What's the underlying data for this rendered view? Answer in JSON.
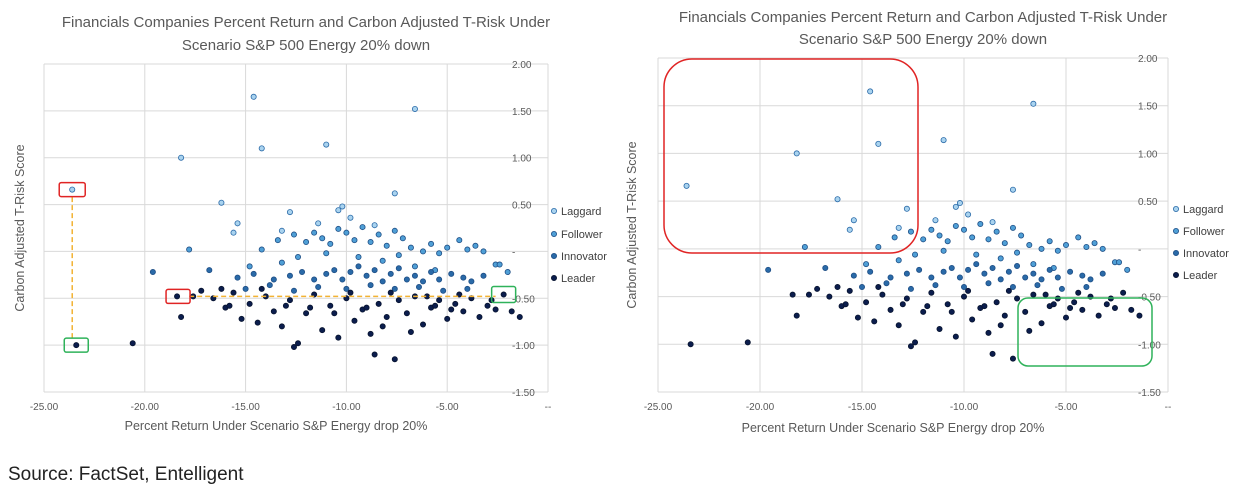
{
  "source": "Source: FactSet, Entelligent",
  "colors": {
    "laggard": "#a9d3ef",
    "follower": "#4f9fd6",
    "innovator": "#2a6aa8",
    "leader": "#0b1d4d",
    "highlight_red": "#e02424",
    "highlight_green": "#2fb25a",
    "guide_yellow": "#f2b233"
  },
  "chart_data": [
    {
      "type": "scatter",
      "title": "Financials Companies Percent Return and Carbon Adjusted T-Risk Under Scenario S&P 500 Energy 20% down",
      "title_lines": [
        "Financials Companies Percent Return and Carbon Adjusted T-Risk Under",
        "Scenario S&P 500 Energy 20% down"
      ],
      "xlabel": "Percent Return Under  Scenario S&P Energy drop 20%",
      "ylabel": "Carbon Adjusted T-Risk Score",
      "xlim": [
        -25,
        0
      ],
      "ylim": [
        -1.5,
        2.0
      ],
      "x_ticks": [
        "-25.00",
        "-20.00",
        "-15.00",
        "-10.00",
        "-5.00",
        "--"
      ],
      "y_ticks": [
        "2.00",
        "1.50",
        "1.00",
        "0.50",
        "-",
        "-0.50",
        "-1.00",
        "-1.50"
      ],
      "legend": [
        "Laggard",
        "Follower",
        "Innovator",
        "Leader"
      ],
      "legend_position": "right",
      "grid": true,
      "annotations": [
        "red box around (-23.6, 0.66)",
        "red box around (-18.4, -0.48)",
        "green box around (-23.4, -1.0)",
        "green box around (-2.2, -0.46)",
        "yellow dashed guide lines"
      ]
    },
    {
      "type": "scatter",
      "title": "Financials Companies Percent Return and Carbon Adjusted T-Risk Under Scenario S&P 500 Energy 20% down",
      "title_lines": [
        "Financials Companies Percent Return and Carbon Adjusted T-Risk Under",
        "Scenario S&P 500 Energy 20% down"
      ],
      "xlabel": "Percent Return Under  Scenario S&P Energy drop 20%",
      "ylabel": "Carbon Adjusted T-Risk Score",
      "xlim": [
        -25,
        0
      ],
      "ylim": [
        -1.5,
        2.0
      ],
      "x_ticks": [
        "-25.00",
        "-20.00",
        "-15.00",
        "-10.00",
        "-5.00",
        "--"
      ],
      "y_ticks": [
        "2.00",
        "1.50",
        "1.00",
        "0.50",
        "-",
        "-0.50",
        "-1.00",
        "-1.50"
      ],
      "legend": [
        "Laggard",
        "Follower",
        "Innovator",
        "Leader"
      ],
      "legend_position": "right",
      "grid": true,
      "annotations": [
        "red rounded box top-left region (x -25 to -12, y 0 to 2)",
        "green rounded box bottom-right region (x -7.4 to -1, y -0.5 to -1.2)"
      ]
    }
  ],
  "series": {
    "laggard": [
      [
        -23.6,
        0.66
      ],
      [
        -18.2,
        1.0
      ],
      [
        -14.6,
        1.65
      ],
      [
        -14.2,
        1.1
      ],
      [
        -11.0,
        1.14
      ],
      [
        -6.6,
        1.52
      ],
      [
        -16.2,
        0.52
      ],
      [
        -7.6,
        0.62
      ],
      [
        -15.4,
        0.3
      ],
      [
        -15.6,
        0.2
      ],
      [
        -12.8,
        0.42
      ],
      [
        -10.2,
        0.48
      ],
      [
        -11.4,
        0.3
      ],
      [
        -13.2,
        0.22
      ],
      [
        -10.4,
        0.44
      ],
      [
        -9.8,
        0.36
      ],
      [
        -8.6,
        0.28
      ]
    ],
    "follower": [
      [
        -17.8,
        0.02
      ],
      [
        -14.2,
        0.02
      ],
      [
        -13.4,
        0.12
      ],
      [
        -12.6,
        0.18
      ],
      [
        -12.0,
        0.1
      ],
      [
        -11.6,
        0.2
      ],
      [
        -11.2,
        0.14
      ],
      [
        -10.8,
        0.08
      ],
      [
        -10.4,
        0.24
      ],
      [
        -10.0,
        0.2
      ],
      [
        -9.6,
        0.12
      ],
      [
        -9.2,
        0.26
      ],
      [
        -8.8,
        0.1
      ],
      [
        -8.4,
        0.18
      ],
      [
        -8.0,
        0.06
      ],
      [
        -7.6,
        0.22
      ],
      [
        -7.2,
        0.14
      ],
      [
        -6.8,
        0.04
      ],
      [
        -6.2,
        0.0
      ],
      [
        -5.8,
        0.08
      ],
      [
        -5.4,
        -0.02
      ],
      [
        -5.0,
        0.04
      ],
      [
        -4.4,
        0.12
      ],
      [
        -4.0,
        0.02
      ],
      [
        -3.6,
        0.06
      ],
      [
        -3.2,
        0.0
      ],
      [
        -2.6,
        -0.14
      ],
      [
        -2.4,
        -0.14
      ],
      [
        -2.0,
        -0.22
      ],
      [
        -14.8,
        -0.16
      ],
      [
        -13.2,
        -0.12
      ],
      [
        -12.4,
        -0.06
      ],
      [
        -11.0,
        -0.02
      ],
      [
        -9.4,
        -0.06
      ],
      [
        -8.2,
        -0.1
      ],
      [
        -7.4,
        -0.04
      ],
      [
        -6.6,
        -0.16
      ],
      [
        -5.6,
        -0.2
      ]
    ],
    "innovator": [
      [
        -19.6,
        -0.22
      ],
      [
        -16.8,
        -0.2
      ],
      [
        -15.4,
        -0.28
      ],
      [
        -14.6,
        -0.24
      ],
      [
        -13.6,
        -0.3
      ],
      [
        -12.8,
        -0.26
      ],
      [
        -12.2,
        -0.22
      ],
      [
        -11.6,
        -0.3
      ],
      [
        -11.0,
        -0.24
      ],
      [
        -10.6,
        -0.2
      ],
      [
        -10.2,
        -0.3
      ],
      [
        -9.8,
        -0.22
      ],
      [
        -9.4,
        -0.16
      ],
      [
        -9.0,
        -0.26
      ],
      [
        -8.6,
        -0.2
      ],
      [
        -8.2,
        -0.32
      ],
      [
        -7.8,
        -0.24
      ],
      [
        -7.4,
        -0.18
      ],
      [
        -7.0,
        -0.3
      ],
      [
        -6.6,
        -0.26
      ],
      [
        -6.2,
        -0.32
      ],
      [
        -5.8,
        -0.22
      ],
      [
        -5.4,
        -0.3
      ],
      [
        -4.8,
        -0.24
      ],
      [
        -4.2,
        -0.28
      ],
      [
        -3.8,
        -0.32
      ],
      [
        -3.2,
        -0.26
      ],
      [
        -15.0,
        -0.4
      ],
      [
        -13.8,
        -0.36
      ],
      [
        -12.6,
        -0.42
      ],
      [
        -11.4,
        -0.38
      ],
      [
        -10.0,
        -0.4
      ],
      [
        -8.8,
        -0.36
      ],
      [
        -7.6,
        -0.4
      ],
      [
        -6.4,
        -0.38
      ],
      [
        -5.2,
        -0.42
      ],
      [
        -4.0,
        -0.4
      ]
    ],
    "leader": [
      [
        -23.4,
        -1.0
      ],
      [
        -20.6,
        -0.98
      ],
      [
        -18.4,
        -0.48
      ],
      [
        -18.2,
        -0.7
      ],
      [
        -17.2,
        -0.42
      ],
      [
        -16.6,
        -0.5
      ],
      [
        -16.0,
        -0.6
      ],
      [
        -15.6,
        -0.44
      ],
      [
        -15.2,
        -0.72
      ],
      [
        -14.8,
        -0.56
      ],
      [
        -14.4,
        -0.76
      ],
      [
        -14.0,
        -0.48
      ],
      [
        -13.6,
        -0.64
      ],
      [
        -13.2,
        -0.8
      ],
      [
        -12.8,
        -0.52
      ],
      [
        -12.4,
        -0.98
      ],
      [
        -12.6,
        -1.02
      ],
      [
        -12.0,
        -0.66
      ],
      [
        -11.6,
        -0.46
      ],
      [
        -11.2,
        -0.84
      ],
      [
        -10.8,
        -0.58
      ],
      [
        -10.4,
        -0.92
      ],
      [
        -10.0,
        -0.5
      ],
      [
        -9.6,
        -0.74
      ],
      [
        -9.2,
        -0.62
      ],
      [
        -8.8,
        -0.88
      ],
      [
        -8.6,
        -1.1
      ],
      [
        -8.4,
        -0.56
      ],
      [
        -8.0,
        -0.7
      ],
      [
        -7.6,
        -1.15
      ],
      [
        -7.4,
        -0.52
      ],
      [
        -7.0,
        -0.66
      ],
      [
        -6.6,
        -0.48
      ],
      [
        -6.2,
        -0.78
      ],
      [
        -5.8,
        -0.6
      ],
      [
        -5.4,
        -0.52
      ],
      [
        -5.0,
        -0.72
      ],
      [
        -4.6,
        -0.56
      ],
      [
        -4.2,
        -0.64
      ],
      [
        -3.8,
        -0.5
      ],
      [
        -3.4,
        -0.7
      ],
      [
        -3.0,
        -0.58
      ],
      [
        -2.6,
        -0.62
      ],
      [
        -2.2,
        -0.46
      ],
      [
        -1.8,
        -0.64
      ],
      [
        -1.4,
        -0.7
      ],
      [
        -14.2,
        -0.4
      ],
      [
        -11.8,
        -0.6
      ],
      [
        -9.8,
        -0.44
      ],
      [
        -7.8,
        -0.44
      ],
      [
        -6.0,
        -0.48
      ],
      [
        -4.4,
        -0.46
      ],
      [
        -2.8,
        -0.52
      ],
      [
        -13.0,
        -0.58
      ],
      [
        -10.6,
        -0.66
      ],
      [
        -8.2,
        -0.8
      ],
      [
        -6.8,
        -0.86
      ],
      [
        -5.6,
        -0.58
      ],
      [
        -4.8,
        -0.62
      ],
      [
        -16.2,
        -0.4
      ],
      [
        -17.6,
        -0.48
      ],
      [
        -15.8,
        -0.58
      ],
      [
        -9.0,
        -0.6
      ]
    ]
  }
}
